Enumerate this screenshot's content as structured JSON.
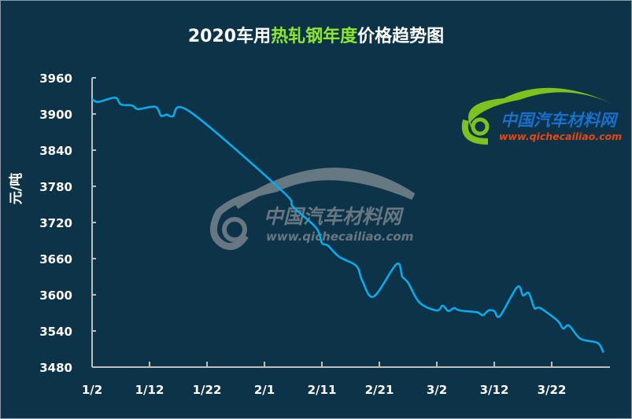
{
  "title": {
    "prefix": "2020车用",
    "highlight": "热轧钢年度",
    "suffix": "价格趋势图",
    "highlight_color": "#8ee62f"
  },
  "watermark": {
    "center_cn": "中国汽车材料网",
    "center_url": "www.qichecailiao.com",
    "corner_cn": "中国汽车材料网",
    "corner_url": "www.qichecailiao.com"
  },
  "chart_data": {
    "type": "line",
    "title": "2020车用热轧钢年度价格趋势图",
    "xlabel": "",
    "ylabel": "元/吨",
    "ylim": [
      3480,
      3960
    ],
    "yticks": [
      3480,
      3540,
      3600,
      3660,
      3720,
      3780,
      3840,
      3900,
      3960
    ],
    "xticks": [
      "1/2",
      "1/12",
      "1/22",
      "2/1",
      "2/11",
      "2/21",
      "3/2",
      "3/12",
      "3/22"
    ],
    "grid": false,
    "line_color": "#00b0f0",
    "series": [
      {
        "x": [
          "1/2",
          "1/3",
          "1/6",
          "1/7",
          "1/9",
          "1/10",
          "1/13",
          "1/14",
          "1/15",
          "1/16",
          "1/19",
          "2/4",
          "2/6",
          "2/10",
          "2/11",
          "2/12",
          "2/14",
          "2/17",
          "2/18",
          "2/20",
          "2/24",
          "2/25",
          "2/26",
          "2/28",
          "3/2",
          "3/3",
          "3/4",
          "3/5",
          "3/6",
          "3/9",
          "3/10",
          "3/11",
          "3/12",
          "3/13",
          "3/16",
          "3/17",
          "3/18",
          "3/19",
          "3/20",
          "3/23",
          "3/24",
          "3/25",
          "3/27",
          "3/30",
          "3/31"
        ],
        "values": [
          3925,
          3920,
          3927,
          3916,
          3914,
          3908,
          3912,
          3897,
          3899,
          3896,
          3904,
          3773,
          3746,
          3711,
          3686,
          3682,
          3663,
          3648,
          3624,
          3597,
          3651,
          3630,
          3620,
          3587,
          3574,
          3582,
          3573,
          3578,
          3574,
          3571,
          3566,
          3574,
          3573,
          3565,
          3613,
          3599,
          3603,
          3578,
          3578,
          3557,
          3544,
          3549,
          3527,
          3520,
          3504
        ]
      }
    ]
  }
}
